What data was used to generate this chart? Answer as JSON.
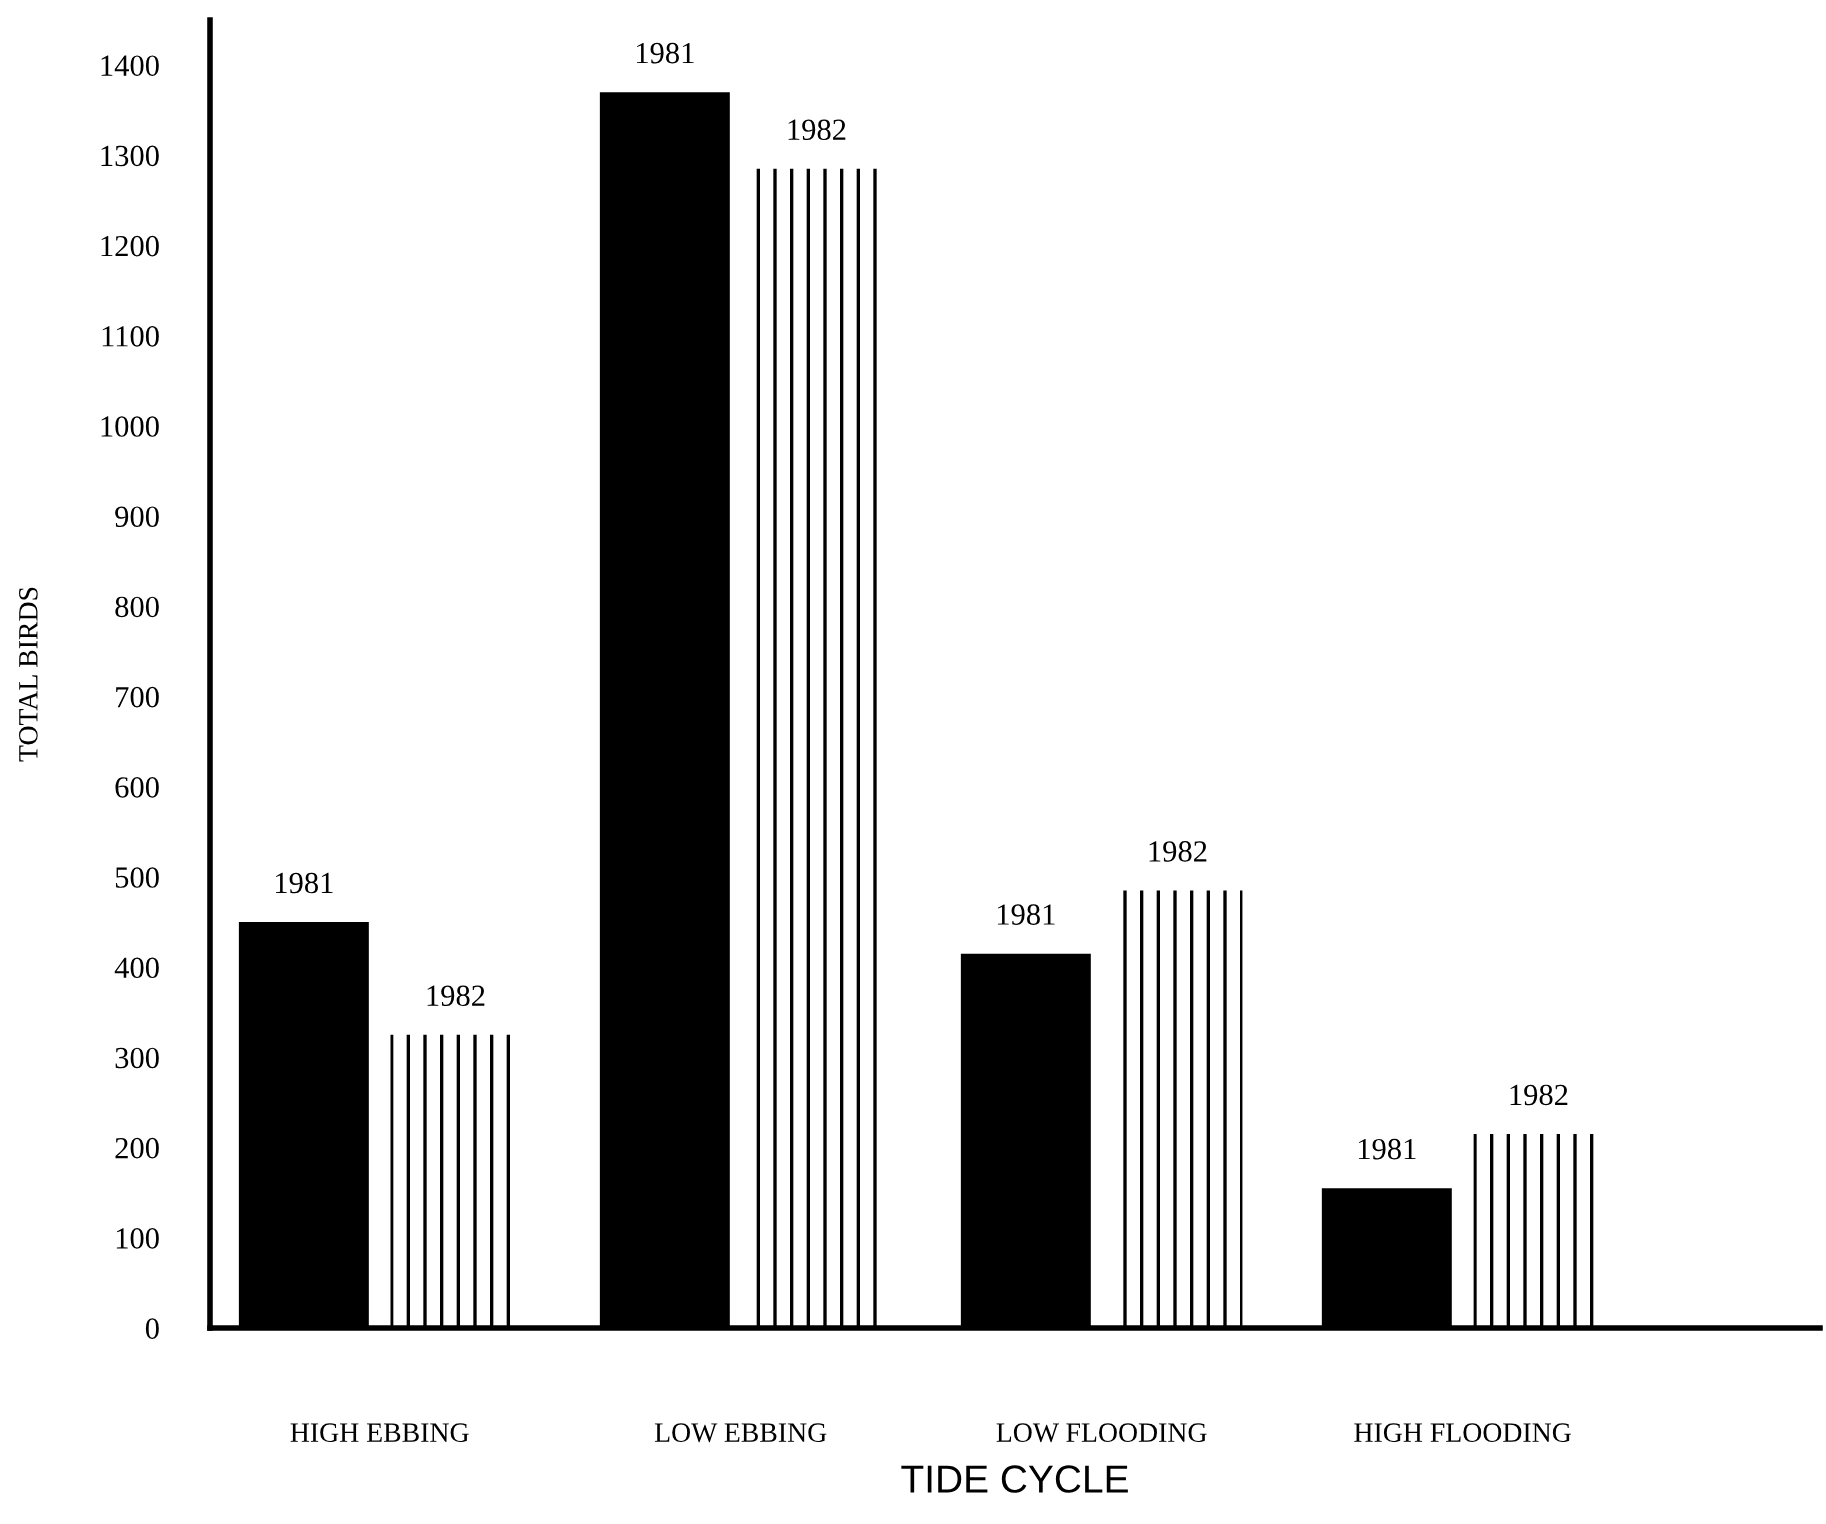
{
  "chart_data": {
    "type": "bar",
    "xlabel": "TIDE CYCLE",
    "ylabel": "TOTAL BIRDS",
    "categories": [
      "HIGH EBBING",
      "LOW EBBING",
      "LOW FLOODING",
      "HIGH FLOODING"
    ],
    "series": [
      {
        "name": "1981",
        "color": "#000000",
        "values": [
          450,
          1370,
          415,
          155
        ]
      },
      {
        "name": "1982",
        "color": "#000000",
        "values": [
          325,
          1285,
          485,
          215
        ]
      }
    ],
    "ylim": [
      0,
      1450
    ],
    "yticks": [
      0,
      100,
      200,
      300,
      400,
      500,
      600,
      700,
      800,
      900,
      1000,
      1100,
      1200,
      1300,
      1400
    ],
    "grid": false,
    "legend": false
  }
}
